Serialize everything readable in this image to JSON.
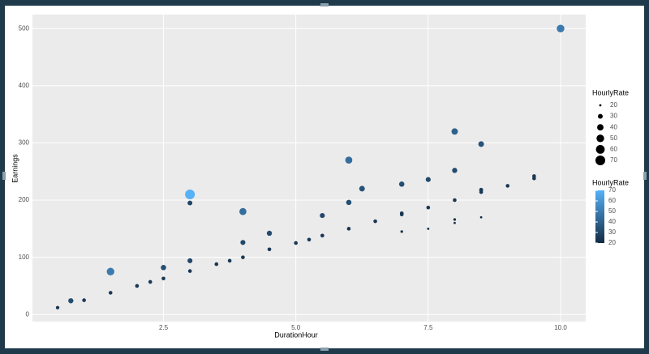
{
  "chart_data": {
    "type": "scatter",
    "x_label": "DurationHour",
    "y_label": "Earnings",
    "size_title": "HourlyRate",
    "color_title": "HourlyRate",
    "series": [
      {
        "x": [
          0.5,
          0.75,
          1,
          1.5,
          1.5,
          2,
          2.25,
          2.5,
          2.5,
          3,
          3,
          3,
          3,
          3.5,
          3.75,
          4,
          4,
          4,
          4.5,
          4.5,
          5,
          5.25,
          5.5,
          5.5,
          6,
          6,
          6,
          6.25,
          6.5,
          7,
          7,
          7,
          7,
          7.5,
          7.5,
          7.5,
          8,
          8,
          8,
          8,
          8,
          8.5,
          8.5,
          8.5,
          8.5,
          9,
          9.5,
          9.5,
          10
        ],
        "values": [
          12,
          24,
          25,
          75,
          38,
          50,
          57,
          82,
          63,
          210,
          195,
          94,
          76,
          88,
          94,
          180,
          126,
          100,
          142,
          114,
          125,
          131,
          173,
          138,
          270,
          196,
          150,
          220,
          163,
          228,
          177,
          175,
          145,
          236,
          187,
          150,
          320,
          252,
          200,
          166,
          160,
          298,
          218,
          214,
          170,
          225,
          242,
          238,
          500
        ],
        "sizes": [
          24,
          32,
          25,
          50,
          25,
          25,
          25,
          33,
          25,
          70,
          30,
          31,
          25,
          25,
          25,
          45,
          31,
          25,
          32,
          25,
          25,
          25,
          31,
          25,
          45,
          33,
          25,
          35,
          25,
          33,
          25,
          25,
          21,
          31,
          25,
          20,
          40,
          32,
          25,
          21,
          20,
          35,
          26,
          25,
          20,
          25,
          25,
          25,
          50
        ]
      }
    ],
    "size_legend": [
      20,
      30,
      40,
      50,
      60,
      70
    ],
    "size_lim": [
      20,
      70
    ],
    "color_lim": [
      20,
      70
    ],
    "color_low": "#132B43",
    "color_high": "#56B1F7",
    "colorbar_ticks": [
      20,
      30,
      40,
      50,
      60,
      70
    ],
    "xlim": [
      0.025,
      10.475
    ],
    "ylim": [
      -12.4,
      524.4
    ],
    "xticks": [
      2.5,
      {
        "value": 5,
        "label": "5.0"
      },
      7.5,
      {
        "value": 10,
        "label": "10.0"
      }
    ],
    "yticks": [
      0,
      100,
      200,
      300,
      400,
      500
    ],
    "grid": true
  }
}
